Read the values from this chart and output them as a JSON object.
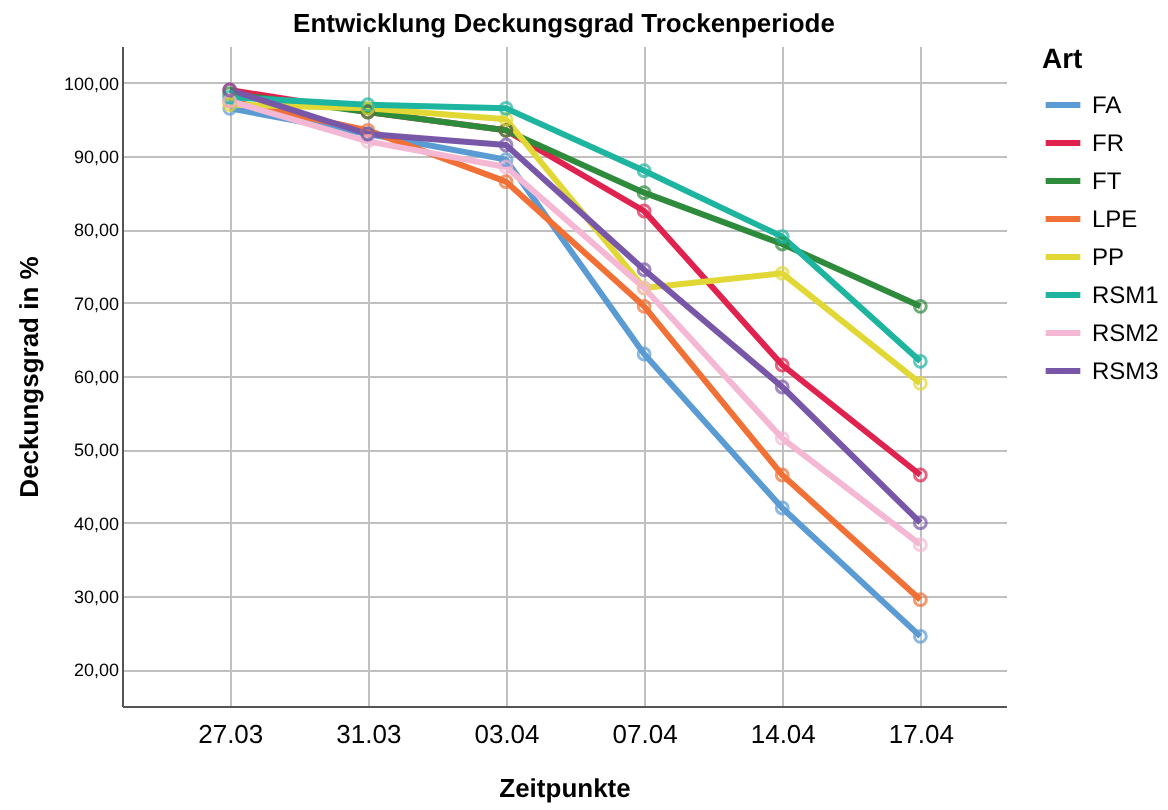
{
  "chart_data": {
    "type": "line",
    "title": "Entwicklung Deckungsgrad Trockenperiode",
    "xlabel": "Zeitpunkte",
    "ylabel": "Deckungsgrad in %",
    "legend_title": "Art",
    "categories": [
      "27.03",
      "31.03",
      "03.04",
      "07.04",
      "14.04",
      "17.04"
    ],
    "series": [
      {
        "name": "FA",
        "color": "#5a9bd4",
        "values": [
          96.5,
          93,
          89.5,
          63,
          42,
          24.5
        ]
      },
      {
        "name": "FR",
        "color": "#e0234e",
        "values": [
          99,
          96,
          93.5,
          82.5,
          61.5,
          46.5
        ]
      },
      {
        "name": "FT",
        "color": "#2e8b3c",
        "values": [
          98.5,
          96,
          93.5,
          85,
          78,
          69.5
        ]
      },
      {
        "name": "LPE",
        "color": "#f07035",
        "values": [
          97.5,
          93.5,
          86.5,
          69.5,
          46.5,
          29.5
        ]
      },
      {
        "name": "PP",
        "color": "#e2d835",
        "values": [
          97,
          96.5,
          95,
          72,
          74,
          59
        ]
      },
      {
        "name": "RSM1",
        "color": "#1db5a0",
        "values": [
          98,
          97,
          96.5,
          88,
          79,
          62
        ]
      },
      {
        "name": "RSM2",
        "color": "#f5b8d4",
        "values": [
          97.5,
          92,
          88.5,
          72,
          51.5,
          37
        ]
      },
      {
        "name": "RSM3",
        "color": "#7856a8",
        "values": [
          99,
          93,
          91.5,
          74.5,
          58.5,
          40
        ]
      }
    ],
    "ylim": [
      15,
      105
    ],
    "yticks": [
      {
        "value": 20,
        "label": "20,00"
      },
      {
        "value": 30,
        "label": "30,00"
      },
      {
        "value": 40,
        "label": "40,00"
      },
      {
        "value": 50,
        "label": "50,00"
      },
      {
        "value": 60,
        "label": "60,00"
      },
      {
        "value": 70,
        "label": "70,00"
      },
      {
        "value": 80,
        "label": "80,00"
      },
      {
        "value": 90,
        "label": "90,00"
      },
      {
        "value": 100,
        "label": "100,00"
      }
    ],
    "grid": true,
    "legend": "right",
    "marker": "circle",
    "line_style": "solid"
  }
}
